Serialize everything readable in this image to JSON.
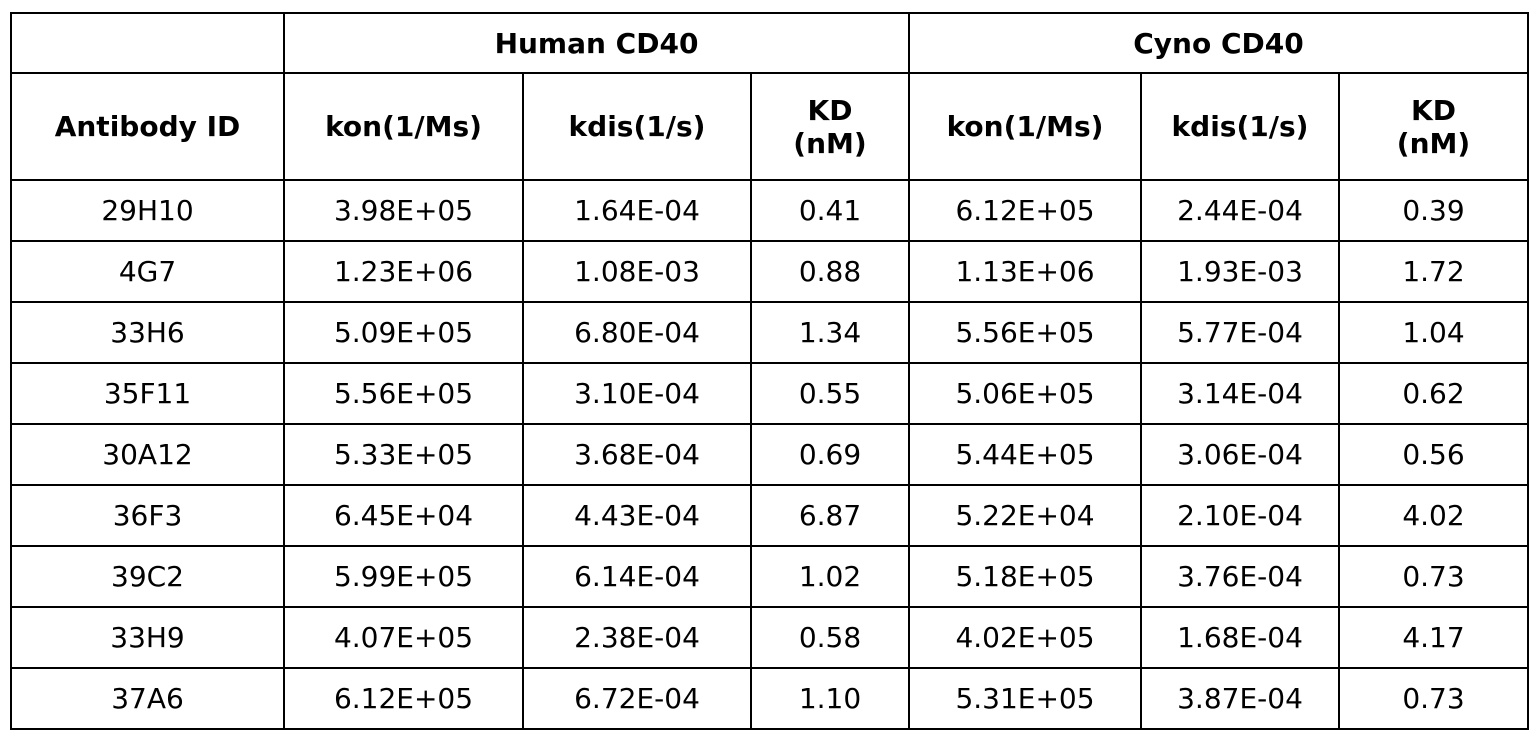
{
  "header": {
    "corner": "",
    "groups": [
      "Human CD40",
      "Cyno CD40"
    ],
    "columns": [
      "Antibody ID",
      "kon(1/Ms)",
      "kdis(1/s)",
      "KD (nM)",
      "kon(1/Ms)",
      "kdis(1/s)",
      "KD (nM)"
    ]
  },
  "table": {
    "rows": [
      [
        "29H10",
        "3.98E+05",
        "1.64E-04",
        "0.41",
        "6.12E+05",
        "2.44E-04",
        "0.39"
      ],
      [
        "4G7",
        "1.23E+06",
        "1.08E-03",
        "0.88",
        "1.13E+06",
        "1.93E-03",
        "1.72"
      ],
      [
        "33H6",
        "5.09E+05",
        "6.80E-04",
        "1.34",
        "5.56E+05",
        "5.77E-04",
        "1.04"
      ],
      [
        "35F11",
        "5.56E+05",
        "3.10E-04",
        "0.55",
        "5.06E+05",
        "3.14E-04",
        "0.62"
      ],
      [
        "30A12",
        "5.33E+05",
        "3.68E-04",
        "0.69",
        "5.44E+05",
        "3.06E-04",
        "0.56"
      ],
      [
        "36F3",
        "6.45E+04",
        "4.43E-04",
        "6.87",
        "5.22E+04",
        "2.10E-04",
        "4.02"
      ],
      [
        "39C2",
        "5.99E+05",
        "6.14E-04",
        "1.02",
        "5.18E+05",
        "3.76E-04",
        "0.73"
      ],
      [
        "33H9",
        "4.07E+05",
        "2.38E-04",
        "0.58",
        "4.02E+05",
        "1.68E-04",
        "4.17"
      ],
      [
        "37A6",
        "6.12E+05",
        "6.72E-04",
        "1.10",
        "5.31E+05",
        "3.87E-04",
        "0.73"
      ]
    ]
  }
}
